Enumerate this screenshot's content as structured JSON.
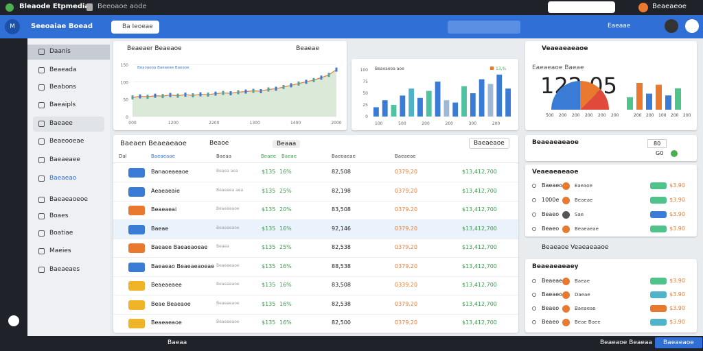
{
  "browser": {
    "tab_title": "Bleaode Etpmedia",
    "tab2_title": "Beeoaoe aode",
    "user": "Beaeaeoe"
  },
  "appbar": {
    "icon": "M",
    "title": "Seeoaiae Boead",
    "search": "Ba Ieoeae",
    "account": "Eaeaae"
  },
  "sidebar": {
    "items": [
      "Daanis",
      "Beaeada",
      "Beabons",
      "Baeaipls",
      "Baeaee",
      "Beaeooeae",
      "Baeaeaee",
      "Baeaeao",
      "Baeaeaoeoe",
      "Boaes",
      "Boatiae",
      "Maeies",
      "Baeaeaes"
    ]
  },
  "line_panel": {
    "title": "Beaeaer Beaeaoe",
    "action": "Beaeae",
    "legend": "Beaoaeoa Baeaeae Baeaoe",
    "values": [
      55,
      58,
      57,
      60,
      59,
      62,
      60,
      63,
      61,
      64,
      63,
      66,
      68,
      67,
      70,
      72,
      74,
      73,
      78,
      80,
      85,
      90,
      95,
      100,
      105,
      112,
      120,
      135
    ],
    "ylim": [
      0,
      150
    ],
    "yticks": [
      0,
      50,
      100,
      150
    ],
    "x_labels": [
      "000",
      "1200",
      "2200",
      "1300",
      "1400",
      "2000"
    ]
  },
  "bar_panel": {
    "legend": "Beaoaeoa aoe",
    "legend2": "13,%",
    "values": [
      20,
      35,
      25,
      45,
      60,
      40,
      55,
      75,
      35,
      30,
      65,
      50,
      80,
      70,
      90,
      60
    ],
    "colors": [
      "#3a7bd5",
      "#3a7bd5",
      "#4fc3a1",
      "#3a7bd5",
      "#4fb3c9",
      "#3a7bd5",
      "#4fc3a1",
      "#3a7bd5",
      "#a0b8d8",
      "#3a7bd5",
      "#4fc3a1",
      "#3a7bd5",
      "#3a7bd5",
      "#a0b8d8",
      "#3a7bd5",
      "#3a7bd5"
    ],
    "ylim": [
      0,
      100
    ],
    "yticks": [
      0,
      25,
      50,
      75,
      100
    ],
    "x_labels": [
      "100",
      "500",
      "200",
      "200",
      "300",
      "200"
    ]
  },
  "stat_panel": {
    "title": "Veaeaeaeaoe",
    "subtitle": "Eaeaeaoe Baeae",
    "value": "122.05",
    "gauge_labels": [
      "500",
      "200",
      "200",
      "200",
      "200",
      "200"
    ],
    "values": [
      35,
      75,
      45,
      70,
      40,
      60
    ],
    "colors": [
      "#4fc38a",
      "#e8792e",
      "#3a7bd5",
      "#e8792e",
      "#3a7bd5",
      "#4fc38a"
    ],
    "ylim": [
      0,
      100
    ],
    "x_labels": [
      "200",
      "200",
      "100",
      "200",
      "200"
    ]
  },
  "table": {
    "title": "Baeaen Beaeaeaoe",
    "filter1": "Beaoe",
    "filter2": "Beaaa",
    "action": "Baeaeaoe",
    "headers": [
      "Dal",
      "Baeaeaae",
      "Baeaa",
      "Beaee",
      "Baeae",
      "Baeoaeae",
      "Baeaeae"
    ],
    "rows": [
      [
        "Banaoeaeaoe",
        "Beaea aea",
        "$135",
        "16%",
        "82,508",
        "0379.20",
        "$13,412,700"
      ],
      [
        "Aeaeaeaie",
        "Beaeaea aea",
        "$135",
        "25%",
        "82,198",
        "0379.20",
        "$13,412,700"
      ],
      [
        "Beaeaeai",
        "Beaeaeaoe",
        "$135",
        "20%",
        "83,508",
        "0379.20",
        "$13,412,700"
      ],
      [
        "Baeae",
        "Beaeaeaoe",
        "$135",
        "16%",
        "92,146",
        "0379.20",
        "$13,412,700"
      ],
      [
        "Baeaee Baeaeaoeae",
        "Beaea",
        "$135",
        "25%",
        "82,538",
        "0379.20",
        "$13,412,700"
      ],
      [
        "Baeaeao Beaeaeaoeae",
        "Beaeaeaoe",
        "$135",
        "16%",
        "88,538",
        "0379.20",
        "$13,412,700"
      ],
      [
        "Beaeaeaee",
        "Beaeaeaoe",
        "$135",
        "16%",
        "83,508",
        "0339.20",
        "$13,412,700"
      ],
      [
        "Beae Beaeaoe",
        "Beaeaeaoe",
        "$135",
        "16%",
        "82,538",
        "0379.20",
        "$13,412,700"
      ],
      [
        "Beaeaeaoe",
        "Beaeaeaoe",
        "$135",
        "16%",
        "82,500",
        "0379.20",
        "$13,412,700"
      ]
    ],
    "icon_colors": [
      "#3a7bd5",
      "#3a7bd5",
      "#e8792e",
      "#3a7bd5",
      "#e8792e",
      "#3a7bd5",
      "#f0b429",
      "#f0b429",
      "#f0b429"
    ]
  },
  "side1": {
    "title": "Beaeaeaeaoe",
    "box": "80",
    "box2": "G0"
  },
  "side2": {
    "title": "Veaeaeaeaoe",
    "rows": [
      [
        "Baeaeo",
        "Eaeaoe",
        "$3.90"
      ],
      [
        "1000e",
        "Beaeae",
        "$3.90"
      ],
      [
        "Beaeo",
        "Sae",
        "$3.90"
      ],
      [
        "Beaeo",
        "Beaeaeae",
        "$3.90"
      ]
    ],
    "badge_colors": [
      "#4fc38a",
      "#4fc38a",
      "#3a7bd5",
      "#4fc38a"
    ],
    "footer": "Beaeaoe Veaeaeaaoe"
  },
  "side3": {
    "title": "Beaeaeaeaey",
    "rows": [
      [
        "Beaeae",
        "Baeae",
        "$3.90"
      ],
      [
        "Baeaeo",
        "Daeae",
        "$3.90"
      ],
      [
        "Beaeo",
        "Baeaeae",
        "$3.90"
      ],
      [
        "Beaeo",
        "Beae Baee",
        "$3.90"
      ]
    ],
    "badge_colors": [
      "#4fc38a",
      "#4fb3c9",
      "#e8792e",
      "#4fb3c9"
    ]
  },
  "taskbar": {
    "app": "Baeaa",
    "status": "Beaeaoe Beaeaa",
    "button": "Baeaeaoe"
  }
}
